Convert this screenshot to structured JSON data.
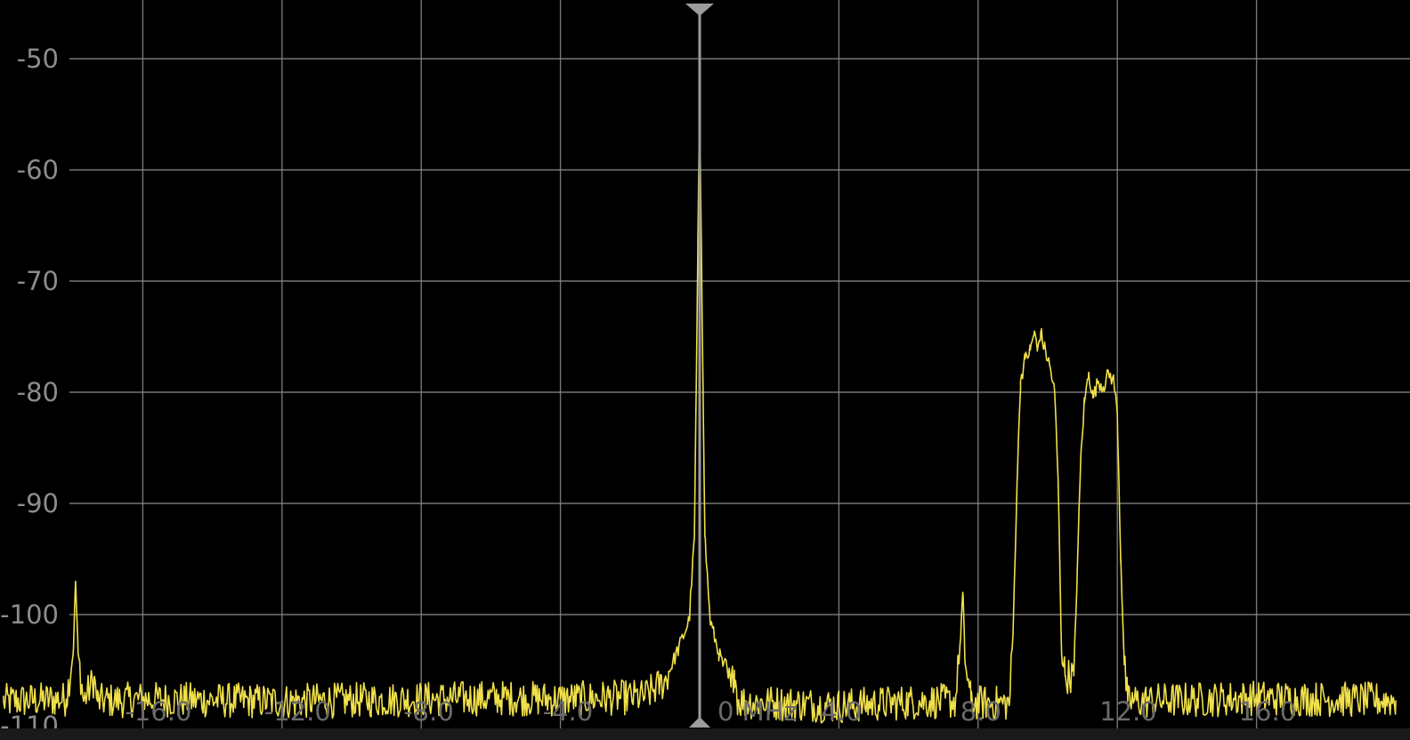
{
  "colors": {
    "background": "#000000",
    "grid": "#8a8a8a",
    "trace": "#f0e04a",
    "tick_text": "#8c8c8c",
    "marker": "#9c9c9c"
  },
  "chart_data": {
    "type": "line",
    "title": "",
    "xlabel": "",
    "ylabel": "",
    "xlim": [
      -20,
      20
    ],
    "ylim": [
      -110,
      -45
    ],
    "grid": true,
    "x_ticks": [
      {
        "value": -16,
        "label": "-16.0"
      },
      {
        "value": -12,
        "label": "-12.0"
      },
      {
        "value": -8,
        "label": "-8.0"
      },
      {
        "value": -4,
        "label": "-4.0"
      },
      {
        "value": 0,
        "label": "0 MHz"
      },
      {
        "value": 4,
        "label": "4.0"
      },
      {
        "value": 8,
        "label": "8.0"
      },
      {
        "value": 12,
        "label": "12.0"
      },
      {
        "value": 16,
        "label": "16.0"
      }
    ],
    "y_ticks": [
      {
        "value": -50,
        "label": "-50"
      },
      {
        "value": -60,
        "label": "-60"
      },
      {
        "value": -70,
        "label": "-70"
      },
      {
        "value": -80,
        "label": "-80"
      },
      {
        "value": -90,
        "label": "-90"
      },
      {
        "value": -100,
        "label": "-100"
      },
      {
        "value": -110,
        "label": "-110"
      }
    ],
    "center_marker_x": 0,
    "noise_floor_db": -107.8,
    "series": [
      {
        "values": [
          [
            -20.0,
            -107.8
          ],
          [
            -18.2,
            -107.6
          ],
          [
            -18.0,
            -103.5
          ],
          [
            -17.93,
            -97.0
          ],
          [
            -17.86,
            -103.5
          ],
          [
            -17.7,
            -107.8
          ],
          [
            -17.4,
            -105.8
          ],
          [
            -17.3,
            -107.8
          ],
          [
            -16.0,
            -107.6
          ],
          [
            -12.0,
            -107.8
          ],
          [
            -8.0,
            -107.6
          ],
          [
            -5.8,
            -107.5
          ],
          [
            -4.0,
            -107.6
          ],
          [
            -1.6,
            -107.4
          ],
          [
            -1.0,
            -106.0
          ],
          [
            -0.6,
            -103.0
          ],
          [
            -0.3,
            -100.5
          ],
          [
            -0.15,
            -93.0
          ],
          [
            -0.1,
            -80.0
          ],
          [
            -0.05,
            -67.0
          ],
          [
            0.0,
            -54.0
          ],
          [
            0.05,
            -67.0
          ],
          [
            0.1,
            -80.0
          ],
          [
            0.15,
            -93.0
          ],
          [
            0.3,
            -100.5
          ],
          [
            0.55,
            -103.5
          ],
          [
            0.9,
            -106.5
          ],
          [
            1.0,
            -105.0
          ],
          [
            1.1,
            -107.8
          ],
          [
            4.0,
            -108.2
          ],
          [
            6.5,
            -107.8
          ],
          [
            7.35,
            -107.8
          ],
          [
            7.5,
            -102.0
          ],
          [
            7.56,
            -98.0
          ],
          [
            7.62,
            -104.0
          ],
          [
            7.8,
            -107.9
          ],
          [
            8.9,
            -108.0
          ],
          [
            9.0,
            -102.0
          ],
          [
            9.12,
            -88.0
          ],
          [
            9.22,
            -79.0
          ],
          [
            9.35,
            -77.0
          ],
          [
            9.5,
            -76.2
          ],
          [
            9.62,
            -74.5
          ],
          [
            9.7,
            -76.3
          ],
          [
            9.8,
            -74.6
          ],
          [
            9.9,
            -76.0
          ],
          [
            10.05,
            -77.5
          ],
          [
            10.2,
            -80.0
          ],
          [
            10.3,
            -88.0
          ],
          [
            10.4,
            -103.5
          ],
          [
            10.5,
            -105.5
          ],
          [
            10.75,
            -105.5
          ],
          [
            10.85,
            -96.0
          ],
          [
            10.95,
            -86.0
          ],
          [
            11.05,
            -81.0
          ],
          [
            11.18,
            -78.2
          ],
          [
            11.3,
            -80.5
          ],
          [
            11.45,
            -79.0
          ],
          [
            11.6,
            -79.5
          ],
          [
            11.75,
            -78.3
          ],
          [
            11.9,
            -79.0
          ],
          [
            12.0,
            -82.0
          ],
          [
            12.1,
            -95.0
          ],
          [
            12.2,
            -104.5
          ],
          [
            12.3,
            -107.8
          ],
          [
            16.0,
            -107.5
          ],
          [
            20.0,
            -107.7
          ]
        ]
      }
    ]
  }
}
